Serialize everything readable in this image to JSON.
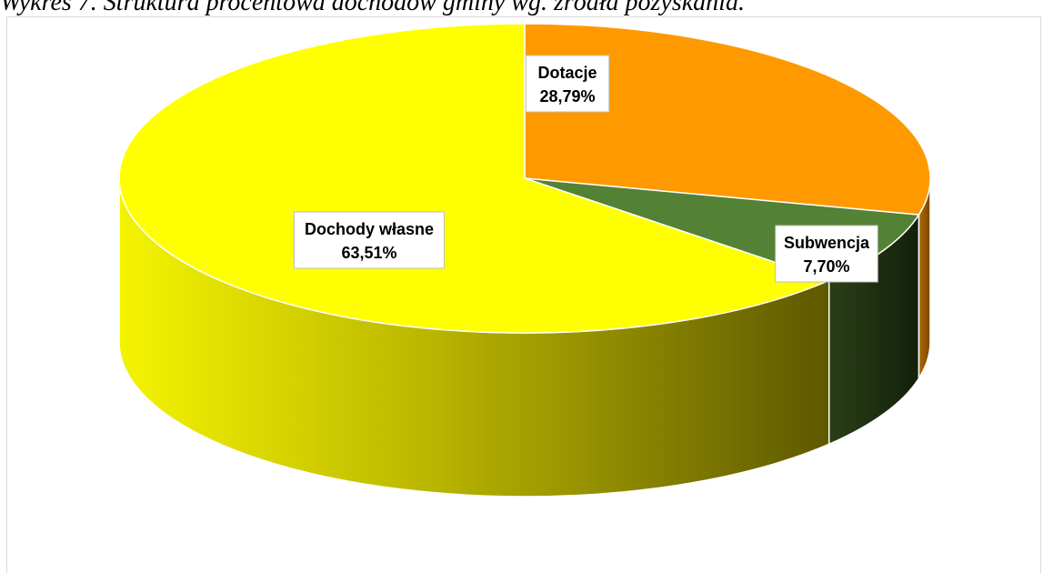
{
  "caption": "Wykres 7. Struktura procentowa dochodów gminy wg. źródła pozyskania.",
  "chart_data": {
    "type": "pie",
    "three_d": true,
    "slices": [
      {
        "name": "Dotacje",
        "value": 28.79,
        "label": "28,79%",
        "color": "#FF9900"
      },
      {
        "name": "Subwencja",
        "value": 7.7,
        "label": "7,70%",
        "color": "#538135"
      },
      {
        "name": "Dochody własne",
        "value": 63.51,
        "label": "63,51%",
        "color": "#FFFF00"
      }
    ],
    "legend": "none"
  }
}
